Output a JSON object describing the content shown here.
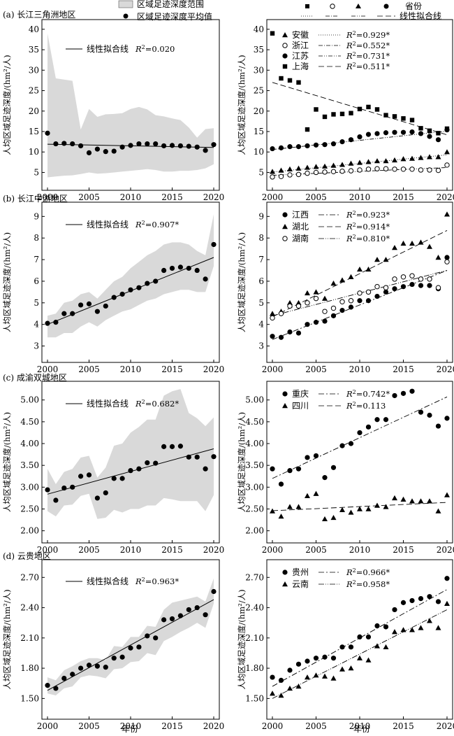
{
  "legend_top": {
    "range_label": "区域足迹深度范围",
    "mean_label": "区域足迹深度平均值",
    "province_label": "省份",
    "fit_label": "线性拟合线"
  },
  "x_axis_label": "年份",
  "colors": {
    "band": "#d9d9d9",
    "line": "#000000",
    "point": "#000000"
  },
  "chart_data": [
    {
      "id": "a-left",
      "type": "area",
      "panel_title": "(a) 长江三角洲地区",
      "ylabel": "人均区域足迹深度/(hm²/人)",
      "xlim": [
        2000,
        2020
      ],
      "ylim": [
        2,
        41
      ],
      "yticks": [
        5,
        10,
        15,
        20,
        25,
        30,
        35,
        40
      ],
      "ytick_labels": [
        "5",
        "10",
        "15",
        "20",
        "25",
        "30",
        "35",
        "40"
      ],
      "xticks": [
        2000,
        2005,
        2010,
        2015,
        2020
      ],
      "legend_text": "线性拟合线",
      "r2_label": "R²=0.020",
      "x": [
        2000,
        2001,
        2002,
        2003,
        2004,
        2005,
        2006,
        2007,
        2008,
        2009,
        2010,
        2011,
        2012,
        2013,
        2014,
        2015,
        2016,
        2017,
        2018,
        2019,
        2020
      ],
      "mean": [
        14.6,
        12.0,
        12.1,
        12.0,
        11.5,
        9.8,
        10.7,
        10.1,
        10.2,
        11.2,
        11.6,
        12.0,
        12.0,
        12.0,
        11.5,
        11.6,
        11.5,
        11.4,
        11.2,
        10.4,
        11.8
      ],
      "range_max": [
        39.0,
        28.0,
        27.7,
        27.4,
        15.5,
        20.5,
        18.6,
        19.2,
        19.3,
        19.5,
        20.5,
        21.0,
        20.4,
        19.0,
        18.7,
        18.2,
        17.8,
        16.0,
        13.5,
        15.6,
        15.8
      ],
      "range_min": [
        3.8,
        4.0,
        4.2,
        4.3,
        4.6,
        5.0,
        4.7,
        4.8,
        5.0,
        5.2,
        5.4,
        5.6,
        5.8,
        5.6,
        5.2,
        5.2,
        5.4,
        5.4,
        5.6,
        6.0,
        7.0
      ],
      "fit": {
        "y_start": 11.9,
        "y_end": 11.1
      }
    },
    {
      "id": "a-right",
      "type": "scatter",
      "ylabel": "人均区域足迹深度/(hm²/人)",
      "xlim": [
        2000,
        2020
      ],
      "ylim": [
        2,
        41
      ],
      "yticks": [
        5,
        10,
        15,
        20,
        25,
        30,
        35,
        40
      ],
      "ytick_labels": [
        "5",
        "10",
        "15",
        "20",
        "25",
        "30",
        "35",
        "40"
      ],
      "xticks": [
        2000,
        2005,
        2010,
        2015,
        2020
      ],
      "x": [
        2000,
        2001,
        2002,
        2003,
        2004,
        2005,
        2006,
        2007,
        2008,
        2009,
        2010,
        2011,
        2012,
        2013,
        2014,
        2015,
        2016,
        2017,
        2018,
        2019,
        2020
      ],
      "series": [
        {
          "name": "安徽",
          "marker": "triangle",
          "dash": "1 2",
          "r2": "R²=0.929*",
          "values": [
            5.2,
            5.5,
            5.8,
            6.0,
            6.2,
            6.4,
            6.5,
            6.7,
            6.9,
            7.2,
            7.4,
            7.6,
            7.8,
            7.8,
            8.0,
            8.3,
            8.4,
            8.6,
            8.8,
            8.8,
            10.0
          ],
          "fit": [
            5.1,
            9.3
          ]
        },
        {
          "name": "浙江",
          "marker": "circle-open",
          "dash": "6 2 1 2",
          "r2": "R²=0.552*",
          "values": [
            3.9,
            4.0,
            4.4,
            4.5,
            4.8,
            5.0,
            5.1,
            5.2,
            5.3,
            5.4,
            5.6,
            5.8,
            5.9,
            5.9,
            5.8,
            5.8,
            5.8,
            5.6,
            5.6,
            5.5,
            6.8
          ],
          "fit": [
            4.3,
            6.2
          ]
        },
        {
          "name": "江苏",
          "marker": "circle",
          "dash": "6 2 1 2 1 2",
          "r2": "R²=0.731*",
          "values": [
            10.8,
            11.0,
            11.3,
            11.3,
            11.5,
            11.7,
            11.8,
            12.0,
            12.5,
            13.0,
            13.7,
            14.3,
            14.5,
            14.7,
            14.8,
            14.8,
            14.9,
            14.5,
            13.8,
            13.0,
            15.4
          ],
          "fit": [
            10.6,
            15.1
          ]
        },
        {
          "name": "上海",
          "marker": "square",
          "dash": "8 4",
          "r2": "R²=0.511*",
          "values": [
            39.0,
            28.0,
            27.5,
            27.0,
            15.5,
            20.4,
            18.6,
            19.2,
            19.3,
            19.5,
            20.5,
            21.0,
            20.4,
            19.0,
            18.7,
            18.2,
            17.8,
            15.8,
            15.2,
            14.6,
            15.7
          ],
          "fit": [
            27.0,
            14.2
          ]
        }
      ]
    },
    {
      "id": "b-left",
      "type": "area",
      "panel_title": "(b) 长江中游地区",
      "ylabel": "人均区域足迹深度/(hm²/人)",
      "xlim": [
        2000,
        2020
      ],
      "ylim": [
        2.5,
        9.4
      ],
      "yticks": [
        3,
        4,
        5,
        6,
        7,
        8,
        9
      ],
      "ytick_labels": [
        "3",
        "4",
        "5",
        "6",
        "7",
        "8",
        "9"
      ],
      "xticks": [
        2000,
        2005,
        2010,
        2015,
        2020
      ],
      "legend_text": "线性拟合线",
      "r2_label": "R²=0.907*",
      "x": [
        2000,
        2001,
        2002,
        2003,
        2004,
        2005,
        2006,
        2007,
        2008,
        2009,
        2010,
        2011,
        2012,
        2013,
        2014,
        2015,
        2016,
        2017,
        2018,
        2019,
        2020
      ],
      "mean": [
        4.05,
        4.1,
        4.5,
        4.5,
        4.9,
        4.95,
        4.6,
        4.85,
        5.25,
        5.4,
        5.6,
        5.7,
        5.9,
        6.0,
        6.5,
        6.6,
        6.65,
        6.6,
        6.5,
        6.1,
        7.7
      ],
      "range_max": [
        4.4,
        4.5,
        5.0,
        5.1,
        5.4,
        5.5,
        5.2,
        5.6,
        6.0,
        6.2,
        6.6,
        6.9,
        7.2,
        7.4,
        7.7,
        7.8,
        7.8,
        7.7,
        7.4,
        7.2,
        9.1
      ],
      "range_min": [
        3.4,
        3.4,
        3.6,
        3.6,
        3.9,
        4.1,
        3.9,
        4.2,
        4.4,
        4.6,
        4.7,
        4.9,
        5.1,
        5.2,
        5.4,
        5.5,
        5.6,
        5.6,
        5.5,
        5.5,
        6.7
      ],
      "fit": {
        "y_start": 4.0,
        "y_end": 7.1
      }
    },
    {
      "id": "b-right",
      "type": "scatter",
      "ylabel": "人均区域足迹深度/(hm²/人)",
      "xlim": [
        2000,
        2020
      ],
      "ylim": [
        2.5,
        9.4
      ],
      "yticks": [
        3,
        4,
        5,
        6,
        7,
        8,
        9
      ],
      "ytick_labels": [
        "3",
        "4",
        "5",
        "6",
        "7",
        "8",
        "9"
      ],
      "xticks": [
        2000,
        2005,
        2010,
        2015,
        2020
      ],
      "x": [
        2000,
        2001,
        2002,
        2003,
        2004,
        2005,
        2006,
        2007,
        2008,
        2009,
        2010,
        2011,
        2012,
        2013,
        2014,
        2015,
        2016,
        2017,
        2018,
        2019,
        2020
      ],
      "series": [
        {
          "name": "江西",
          "marker": "circle",
          "dash": "8 3 2 3",
          "r2": "R²=0.923*",
          "values": [
            3.45,
            3.4,
            3.65,
            3.6,
            4.0,
            4.1,
            4.15,
            4.4,
            4.65,
            4.8,
            5.1,
            5.1,
            5.3,
            5.5,
            5.65,
            5.75,
            5.85,
            5.8,
            5.8,
            5.65,
            7.1
          ],
          "fit": [
            3.3,
            6.5
          ]
        },
        {
          "name": "湖北",
          "marker": "triangle",
          "dash": "8 4",
          "r2": "R²=0.914*",
          "values": [
            4.5,
            4.6,
            5.0,
            5.0,
            5.45,
            5.5,
            5.2,
            5.9,
            6.05,
            6.2,
            6.55,
            6.55,
            7.0,
            7.0,
            7.55,
            7.75,
            7.75,
            7.8,
            7.6,
            7.1,
            9.1
          ],
          "fit": [
            4.35,
            8.35
          ]
        },
        {
          "name": "湖南",
          "marker": "circle-open",
          "dash": "8 2 1 2 1 2",
          "r2": "R²=0.810*",
          "values": [
            4.3,
            4.5,
            4.85,
            4.85,
            5.0,
            5.2,
            4.6,
            4.75,
            5.05,
            5.1,
            5.45,
            5.5,
            5.75,
            5.7,
            6.1,
            6.2,
            6.25,
            6.1,
            6.1,
            5.7,
            6.9
          ],
          "fit": [
            4.4,
            6.5
          ]
        }
      ]
    },
    {
      "id": "c-left",
      "type": "area",
      "panel_title": "(c) 成渝双城地区",
      "ylabel": "人均区域足迹深度/(hm²/人)",
      "xlim": [
        2000,
        2020
      ],
      "ylim": [
        1.85,
        5.3
      ],
      "yticks": [
        2.0,
        2.5,
        3.0,
        3.5,
        4.0,
        4.5,
        5.0
      ],
      "ytick_labels": [
        "2.00",
        "2.50",
        "3.00",
        "3.50",
        "4.00",
        "4.50",
        "5.00"
      ],
      "xticks": [
        2000,
        2005,
        2010,
        2015,
        2020
      ],
      "legend_text": "线性拟合线",
      "r2_label": "R²=0.682*",
      "x": [
        2000,
        2001,
        2002,
        2003,
        2004,
        2005,
        2006,
        2007,
        2008,
        2009,
        2010,
        2011,
        2012,
        2013,
        2014,
        2015,
        2016,
        2017,
        2018,
        2019,
        2020
      ],
      "mean": [
        2.94,
        2.7,
        2.98,
        3.0,
        3.25,
        3.28,
        2.75,
        2.87,
        3.2,
        3.2,
        3.38,
        3.42,
        3.56,
        3.55,
        3.93,
        3.93,
        3.94,
        3.69,
        3.69,
        3.42,
        3.7
      ],
      "range_max": [
        3.42,
        3.07,
        3.35,
        3.42,
        3.68,
        3.72,
        3.22,
        3.45,
        3.95,
        4.0,
        4.25,
        4.38,
        4.55,
        4.55,
        5.1,
        5.2,
        5.25,
        4.7,
        4.58,
        4.4,
        4.6
      ],
      "range_min": [
        2.45,
        2.33,
        2.58,
        2.6,
        2.8,
        2.85,
        2.27,
        2.3,
        2.48,
        2.42,
        2.5,
        2.5,
        2.58,
        2.58,
        2.75,
        2.72,
        2.68,
        2.68,
        2.68,
        2.45,
        2.82
      ],
      "fit": {
        "y_start": 2.84,
        "y_end": 3.88
      }
    },
    {
      "id": "c-right",
      "type": "scatter",
      "ylabel": "人均区域足迹深度/(hm²/人)",
      "xlim": [
        2000,
        2020
      ],
      "ylim": [
        1.85,
        5.3
      ],
      "yticks": [
        2.0,
        2.5,
        3.0,
        3.5,
        4.0,
        4.5,
        5.0
      ],
      "ytick_labels": [
        "2.00",
        "2.50",
        "3.00",
        "3.50",
        "4.00",
        "4.50",
        "5.00"
      ],
      "xticks": [
        2000,
        2005,
        2010,
        2015,
        2020
      ],
      "x": [
        2000,
        2001,
        2002,
        2003,
        2004,
        2005,
        2006,
        2007,
        2008,
        2009,
        2010,
        2011,
        2012,
        2013,
        2014,
        2015,
        2016,
        2017,
        2018,
        2019,
        2020
      ],
      "series": [
        {
          "name": "重庆",
          "marker": "circle",
          "dash": "8 3 2 3",
          "r2": "R²=0.742*",
          "values": [
            3.42,
            3.07,
            3.38,
            3.42,
            3.68,
            3.72,
            3.22,
            3.45,
            3.95,
            4.0,
            4.25,
            4.38,
            4.55,
            4.55,
            5.1,
            5.15,
            5.2,
            4.72,
            4.65,
            4.4,
            4.58
          ],
          "fit": [
            3.2,
            5.07
          ]
        },
        {
          "name": "四川",
          "marker": "triangle",
          "dash": "8 4",
          "r2": "R²=0.113",
          "values": [
            2.45,
            2.33,
            2.55,
            2.55,
            2.8,
            2.85,
            2.27,
            2.3,
            2.48,
            2.42,
            2.5,
            2.5,
            2.58,
            2.55,
            2.75,
            2.72,
            2.68,
            2.68,
            2.68,
            2.45,
            2.82
          ],
          "fit": [
            2.46,
            2.65
          ]
        }
      ]
    },
    {
      "id": "d-left",
      "type": "area",
      "panel_title": "(d) 云贵地区",
      "ylabel": "人均区域足迹深度/(hm²/人)",
      "xlim": [
        2000,
        2020
      ],
      "ylim": [
        1.35,
        2.82
      ],
      "yticks": [
        1.5,
        1.8,
        2.1,
        2.4,
        2.7
      ],
      "ytick_labels": [
        "1.50",
        "1.80",
        "2.10",
        "2.40",
        "2.70"
      ],
      "xticks": [
        2000,
        2005,
        2010,
        2015,
        2020
      ],
      "legend_text": "线性拟合线",
      "r2_label": "R²=0.963*",
      "x": [
        2000,
        2001,
        2002,
        2003,
        2004,
        2005,
        2006,
        2007,
        2008,
        2009,
        2010,
        2011,
        2012,
        2013,
        2014,
        2015,
        2016,
        2017,
        2018,
        2019,
        2020
      ],
      "mean": [
        1.63,
        1.6,
        1.7,
        1.74,
        1.8,
        1.83,
        1.82,
        1.81,
        1.9,
        1.91,
        2.0,
        2.01,
        2.12,
        2.1,
        2.28,
        2.29,
        2.32,
        2.38,
        2.4,
        2.33,
        2.56
      ],
      "range_max": [
        1.71,
        1.68,
        1.78,
        1.82,
        1.87,
        1.9,
        1.9,
        1.88,
        2.02,
        2.01,
        2.11,
        2.11,
        2.22,
        2.21,
        2.38,
        2.45,
        2.47,
        2.49,
        2.51,
        2.46,
        2.69
      ],
      "range_min": [
        1.55,
        1.53,
        1.6,
        1.62,
        1.71,
        1.73,
        1.72,
        1.7,
        1.79,
        1.8,
        1.86,
        1.87,
        1.95,
        1.93,
        2.07,
        2.11,
        2.16,
        2.2,
        2.25,
        2.2,
        2.44
      ],
      "fit": {
        "y_start": 1.58,
        "y_end": 2.48
      }
    },
    {
      "id": "d-right",
      "type": "scatter",
      "ylabel": "人均区域足迹深度/(hm²/人)",
      "xlim": [
        2000,
        2020
      ],
      "ylim": [
        1.35,
        2.82
      ],
      "yticks": [
        1.5,
        1.8,
        2.1,
        2.4,
        2.7
      ],
      "ytick_labels": [
        "1.50",
        "1.80",
        "2.10",
        "2.40",
        "2.70"
      ],
      "xticks": [
        2000,
        2005,
        2010,
        2015,
        2020
      ],
      "x": [
        2000,
        2001,
        2002,
        2003,
        2004,
        2005,
        2006,
        2007,
        2008,
        2009,
        2010,
        2011,
        2012,
        2013,
        2014,
        2015,
        2016,
        2017,
        2018,
        2019,
        2020
      ],
      "series": [
        {
          "name": "贵州",
          "marker": "circle",
          "dash": "8 3 2 3",
          "r2": "R²=0.966*",
          "values": [
            1.71,
            1.68,
            1.78,
            1.84,
            1.87,
            1.9,
            1.91,
            1.9,
            2.01,
            2.01,
            2.11,
            2.11,
            2.22,
            2.21,
            2.38,
            2.45,
            2.47,
            2.49,
            2.51,
            2.46,
            2.69
          ],
          "fit": [
            1.62,
            2.58
          ]
        },
        {
          "name": "云南",
          "marker": "triangle",
          "dash": "8 2 1 2 1 2",
          "r2": "R²=0.958*",
          "values": [
            1.55,
            1.53,
            1.6,
            1.62,
            1.71,
            1.73,
            1.72,
            1.7,
            1.79,
            1.8,
            1.9,
            1.88,
            2.02,
            2.01,
            2.16,
            2.18,
            2.18,
            2.2,
            2.27,
            2.2,
            2.44
          ],
          "fit": [
            1.5,
            2.38
          ]
        }
      ]
    }
  ]
}
